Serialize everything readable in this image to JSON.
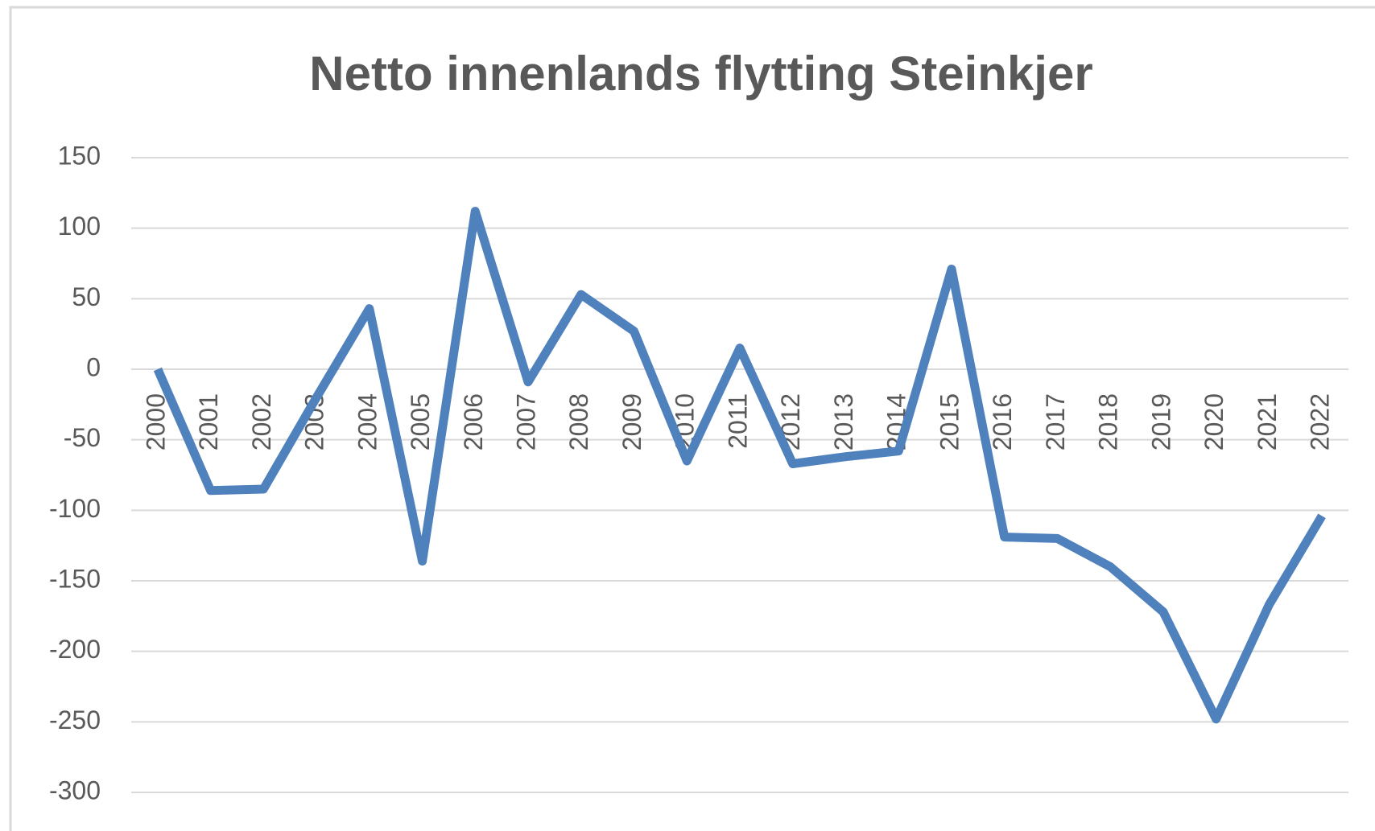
{
  "chart_data": {
    "type": "line",
    "title": "Netto innenlands flytting Steinkjer",
    "categories": [
      "2000",
      "2001",
      "2002",
      "2003",
      "2004",
      "2005",
      "2006",
      "2007",
      "2008",
      "2009",
      "2010",
      "2011",
      "2012",
      "2013",
      "2014",
      "2015",
      "2016",
      "2017",
      "2018",
      "2019",
      "2020",
      "2021",
      "2022"
    ],
    "values": [
      0,
      -86,
      -85,
      -20,
      43,
      -136,
      112,
      -9,
      53,
      27,
      -65,
      15,
      -67,
      -62,
      -58,
      71,
      -119,
      -120,
      -140,
      -172,
      -248,
      -167,
      -104
    ],
    "color": "#4f81bd",
    "ylim": [
      -300,
      150
    ],
    "yticks": [
      -300,
      -250,
      -200,
      -150,
      -100,
      -50,
      0,
      50,
      100,
      150
    ],
    "grid": true
  }
}
